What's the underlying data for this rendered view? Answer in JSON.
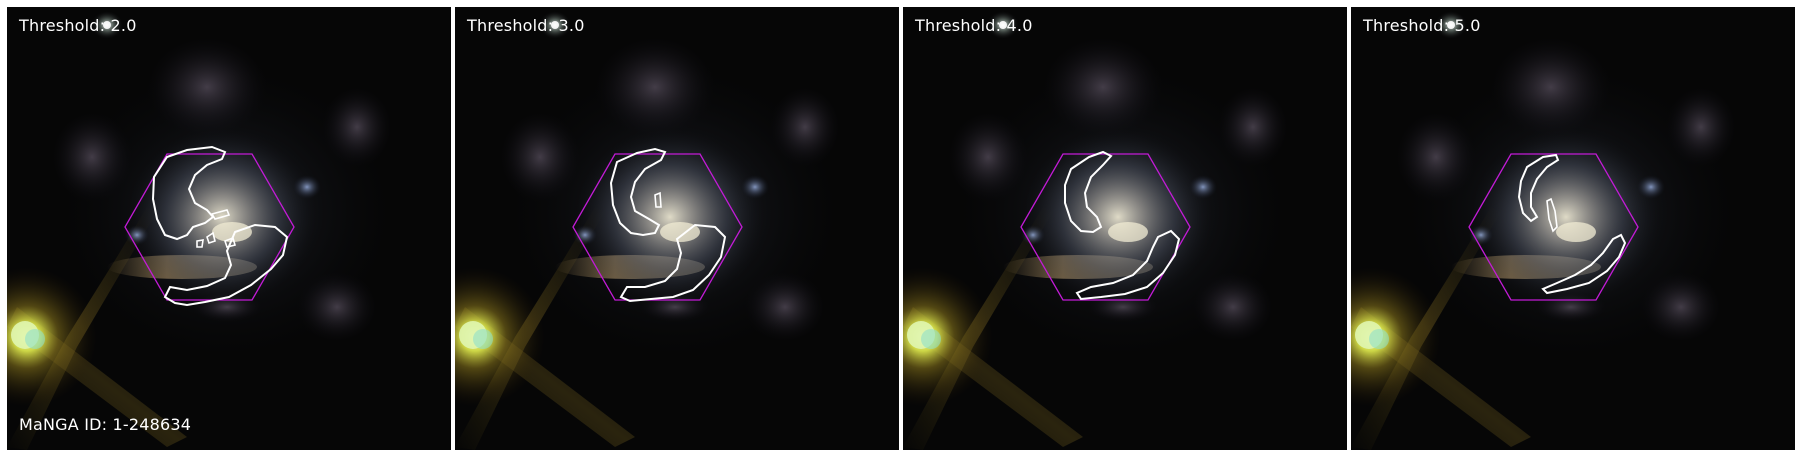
{
  "figure": {
    "galaxy_id_label": "MaNGA ID: 1-248634",
    "panels": [
      {
        "label": "Threshold: 2.0",
        "threshold": 2.0
      },
      {
        "label": "Threshold: 3.0",
        "threshold": 3.0
      },
      {
        "label": "Threshold: 4.0",
        "threshold": 4.0
      },
      {
        "label": "Threshold: 5.0",
        "threshold": 5.0
      }
    ]
  },
  "colors": {
    "contour": "#ffffff",
    "ifu_hexagon": "#c21bd6",
    "background": "#050505",
    "bright_star": "#d8e24a"
  }
}
